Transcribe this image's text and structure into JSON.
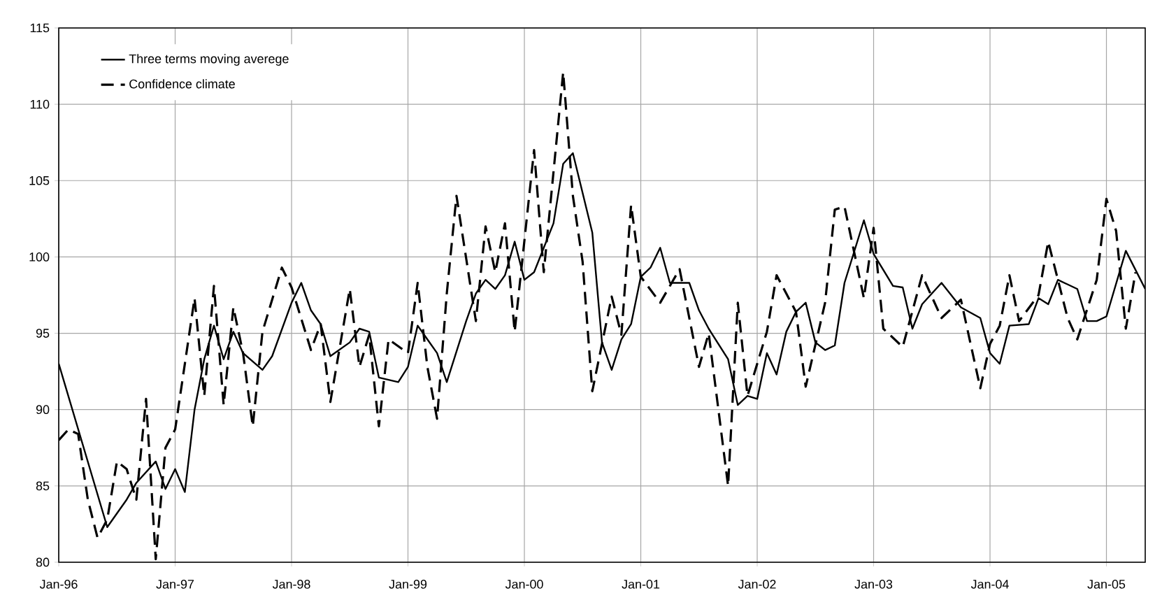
{
  "chart_data": {
    "type": "line",
    "xlim": [
      "1996-01",
      "2005-05"
    ],
    "ylim": [
      80,
      115
    ],
    "xticks": [
      {
        "value": "1996-01",
        "label": "Jan-96"
      },
      {
        "value": "1997-01",
        "label": "Jan-97"
      },
      {
        "value": "1998-01",
        "label": "Jan-98"
      },
      {
        "value": "1999-01",
        "label": "Jan-99"
      },
      {
        "value": "2000-01",
        "label": "Jan-00"
      },
      {
        "value": "2001-01",
        "label": "Jan-01"
      },
      {
        "value": "2002-01",
        "label": "Jan-02"
      },
      {
        "value": "2003-01",
        "label": "Jan-03"
      },
      {
        "value": "2004-01",
        "label": "Jan-04"
      },
      {
        "value": "2005-01",
        "label": "Jan-05"
      }
    ],
    "yticks": [
      80,
      85,
      90,
      95,
      100,
      105,
      110,
      115
    ],
    "grid": true,
    "legend": "top left",
    "marker": "none",
    "series": [
      {
        "name": "Three terms moving averege",
        "color": "#000000",
        "line_style": "solid",
        "x": [
          "1996-01",
          "1996-06",
          "1996-08",
          "1996-09",
          "1996-11",
          "1996-12",
          "1997-01",
          "1997-02",
          "1997-03",
          "1997-04",
          "1997-05",
          "1997-06",
          "1997-07",
          "1997-08",
          "1997-10",
          "1997-11",
          "1998-01",
          "1998-02",
          "1998-03",
          "1998-04",
          "1998-05",
          "1998-07",
          "1998-08",
          "1998-09",
          "1998-10",
          "1998-12",
          "1999-01",
          "1999-02",
          "1999-03",
          "1999-04",
          "1999-05",
          "1999-07",
          "1999-08",
          "1999-09",
          "1999-10",
          "1999-11",
          "1999-12",
          "2000-01",
          "2000-02",
          "2000-04",
          "2000-05",
          "2000-06",
          "2000-08",
          "2000-09",
          "2000-10",
          "2000-11",
          "2000-12",
          "2001-01",
          "2001-02",
          "2001-03",
          "2001-04",
          "2001-05",
          "2001-06",
          "2001-07",
          "2001-08",
          "2001-10",
          "2001-11",
          "2001-12",
          "2002-01",
          "2002-02",
          "2002-03",
          "2002-04",
          "2002-05",
          "2002-06",
          "2002-07",
          "2002-08",
          "2002-09",
          "2002-10",
          "2002-12",
          "2003-01",
          "2003-03",
          "2003-04",
          "2003-05",
          "2003-06",
          "2003-08",
          "2003-10",
          "2003-12",
          "2004-01",
          "2004-02",
          "2004-03",
          "2004-05",
          "2004-06",
          "2004-07",
          "2004-08",
          "2004-10",
          "2004-11",
          "2004-12",
          "2005-01",
          "2005-03",
          "2005-05"
        ],
        "values": [
          93.0,
          82.3,
          84.1,
          85.2,
          86.6,
          84.8,
          86.1,
          84.6,
          90.0,
          93.3,
          95.5,
          93.3,
          95.1,
          93.7,
          92.6,
          93.5,
          97.0,
          98.3,
          96.5,
          95.6,
          93.5,
          94.4,
          95.3,
          95.1,
          92.1,
          91.8,
          92.8,
          95.5,
          94.6,
          93.7,
          91.8,
          95.8,
          97.6,
          98.5,
          97.9,
          98.8,
          101.0,
          98.5,
          99.0,
          102.2,
          106.1,
          106.8,
          101.6,
          94.4,
          92.6,
          94.6,
          95.6,
          98.7,
          99.3,
          100.6,
          98.3,
          98.3,
          98.3,
          96.5,
          95.3,
          93.3,
          90.3,
          90.9,
          90.7,
          93.7,
          92.3,
          95.1,
          96.4,
          97.0,
          94.4,
          93.9,
          94.2,
          98.3,
          102.4,
          100.2,
          98.1,
          98.0,
          95.3,
          96.9,
          98.3,
          96.7,
          96.0,
          93.7,
          93.0,
          95.5,
          95.6,
          97.3,
          96.9,
          98.5,
          97.9,
          95.8,
          95.8,
          96.1,
          100.4,
          97.9
        ]
      },
      {
        "name": "Confidence climate",
        "color": "#000000",
        "line_style": "dashed",
        "x": [
          "1996-01",
          "1996-02",
          "1996-03",
          "1996-04",
          "1996-05",
          "1996-06",
          "1996-07",
          "1996-08",
          "1996-09",
          "1996-10",
          "1996-11",
          "1996-12",
          "1997-01",
          "1997-02",
          "1997-03",
          "1997-04",
          "1997-05",
          "1997-06",
          "1997-07",
          "1997-08",
          "1997-09",
          "1997-10",
          "1997-12",
          "1998-01",
          "1998-03",
          "1998-04",
          "1998-05",
          "1998-07",
          "1998-08",
          "1998-09",
          "1998-10",
          "1998-11",
          "1999-01",
          "1999-02",
          "1999-03",
          "1999-04",
          "1999-05",
          "1999-06",
          "1999-08",
          "1999-09",
          "1999-10",
          "1999-11",
          "1999-12",
          "2000-02",
          "2000-03",
          "2000-05",
          "2000-06",
          "2000-07",
          "2000-08",
          "2000-10",
          "2000-11",
          "2000-12",
          "2001-01",
          "2001-03",
          "2001-05",
          "2001-07",
          "2001-08",
          "2001-10",
          "2001-11",
          "2001-12",
          "2002-02",
          "2002-03",
          "2002-05",
          "2002-06",
          "2002-08",
          "2002-09",
          "2002-10",
          "2002-12",
          "2003-01",
          "2003-02",
          "2003-04",
          "2003-06",
          "2003-08",
          "2003-10",
          "2003-12",
          "2004-01",
          "2004-02",
          "2004-03",
          "2004-04",
          "2004-06",
          "2004-07",
          "2004-09",
          "2004-10",
          "2004-12",
          "2005-01",
          "2005-02",
          "2005-03",
          "2005-04"
        ],
        "values": [
          88.0,
          88.7,
          88.4,
          84.1,
          81.6,
          82.8,
          86.6,
          86.1,
          84.1,
          90.7,
          80.2,
          87.5,
          88.7,
          93.0,
          97.3,
          90.9,
          98.1,
          90.3,
          96.7,
          93.7,
          88.9,
          95.1,
          99.3,
          98.0,
          93.9,
          95.6,
          90.5,
          97.9,
          92.8,
          94.9,
          88.9,
          94.6,
          93.7,
          98.3,
          92.8,
          89.4,
          97.6,
          104.0,
          95.8,
          102.0,
          99.0,
          102.2,
          95.1,
          107.0,
          99.0,
          112.1,
          104.0,
          99.7,
          91.2,
          97.4,
          94.9,
          103.4,
          98.7,
          97.0,
          99.2,
          92.8,
          95.0,
          85.0,
          97.0,
          90.9,
          95.1,
          98.8,
          96.4,
          91.5,
          97.0,
          103.1,
          103.3,
          97.3,
          101.9,
          95.3,
          94.1,
          98.8,
          96.0,
          97.2,
          91.4,
          94.3,
          95.5,
          98.8,
          95.8,
          97.5,
          101.0,
          96.0,
          94.6,
          98.5,
          103.8,
          101.7,
          95.3,
          99.0
        ]
      }
    ]
  }
}
